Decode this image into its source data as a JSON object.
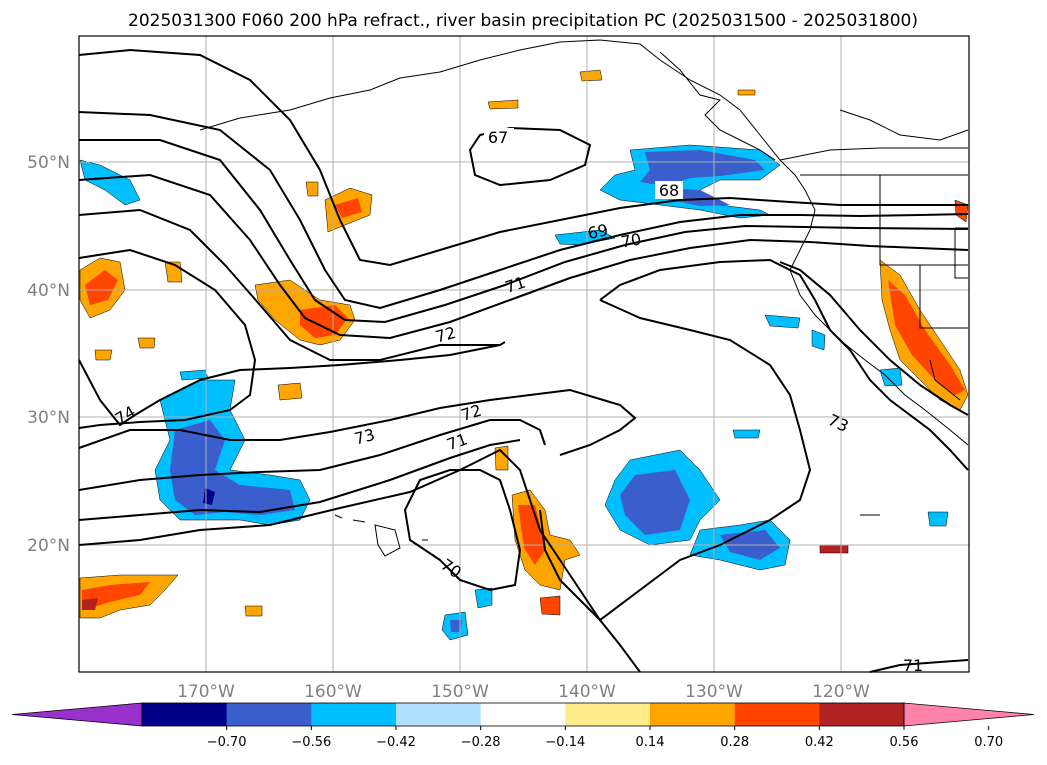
{
  "title": "2025031300 F060 200 hPa refract., river basin precipitation PC (2025031500 - 2025031800)",
  "map": {
    "lat_labels": [
      "50°N",
      "40°N",
      "30°N",
      "20°N"
    ],
    "lon_labels": [
      "170°W",
      "160°W",
      "150°W",
      "140°W",
      "130°W",
      "120°W"
    ],
    "contour_labels": [
      "67",
      "68",
      "69",
      "70",
      "71",
      "72",
      "73",
      "74",
      "72",
      "71",
      "70",
      "73",
      "71"
    ],
    "colors": {
      "land_outline": "#000000",
      "contour": "#000000",
      "grid": "#b0b0b0"
    }
  },
  "colorbar": {
    "tick_labels": [
      "−0.70",
      "−0.56",
      "−0.42",
      "−0.28",
      "−0.14",
      "0.14",
      "0.28",
      "0.42",
      "0.56",
      "0.70"
    ],
    "colors": [
      "#9932cc",
      "#00008b",
      "#3a5fcd",
      "#00bfff",
      "#b0e2ff",
      "#ffffff",
      "#ffeb8a",
      "#ffa500",
      "#ff4500",
      "#b22222",
      "#ff82ab"
    ]
  }
}
